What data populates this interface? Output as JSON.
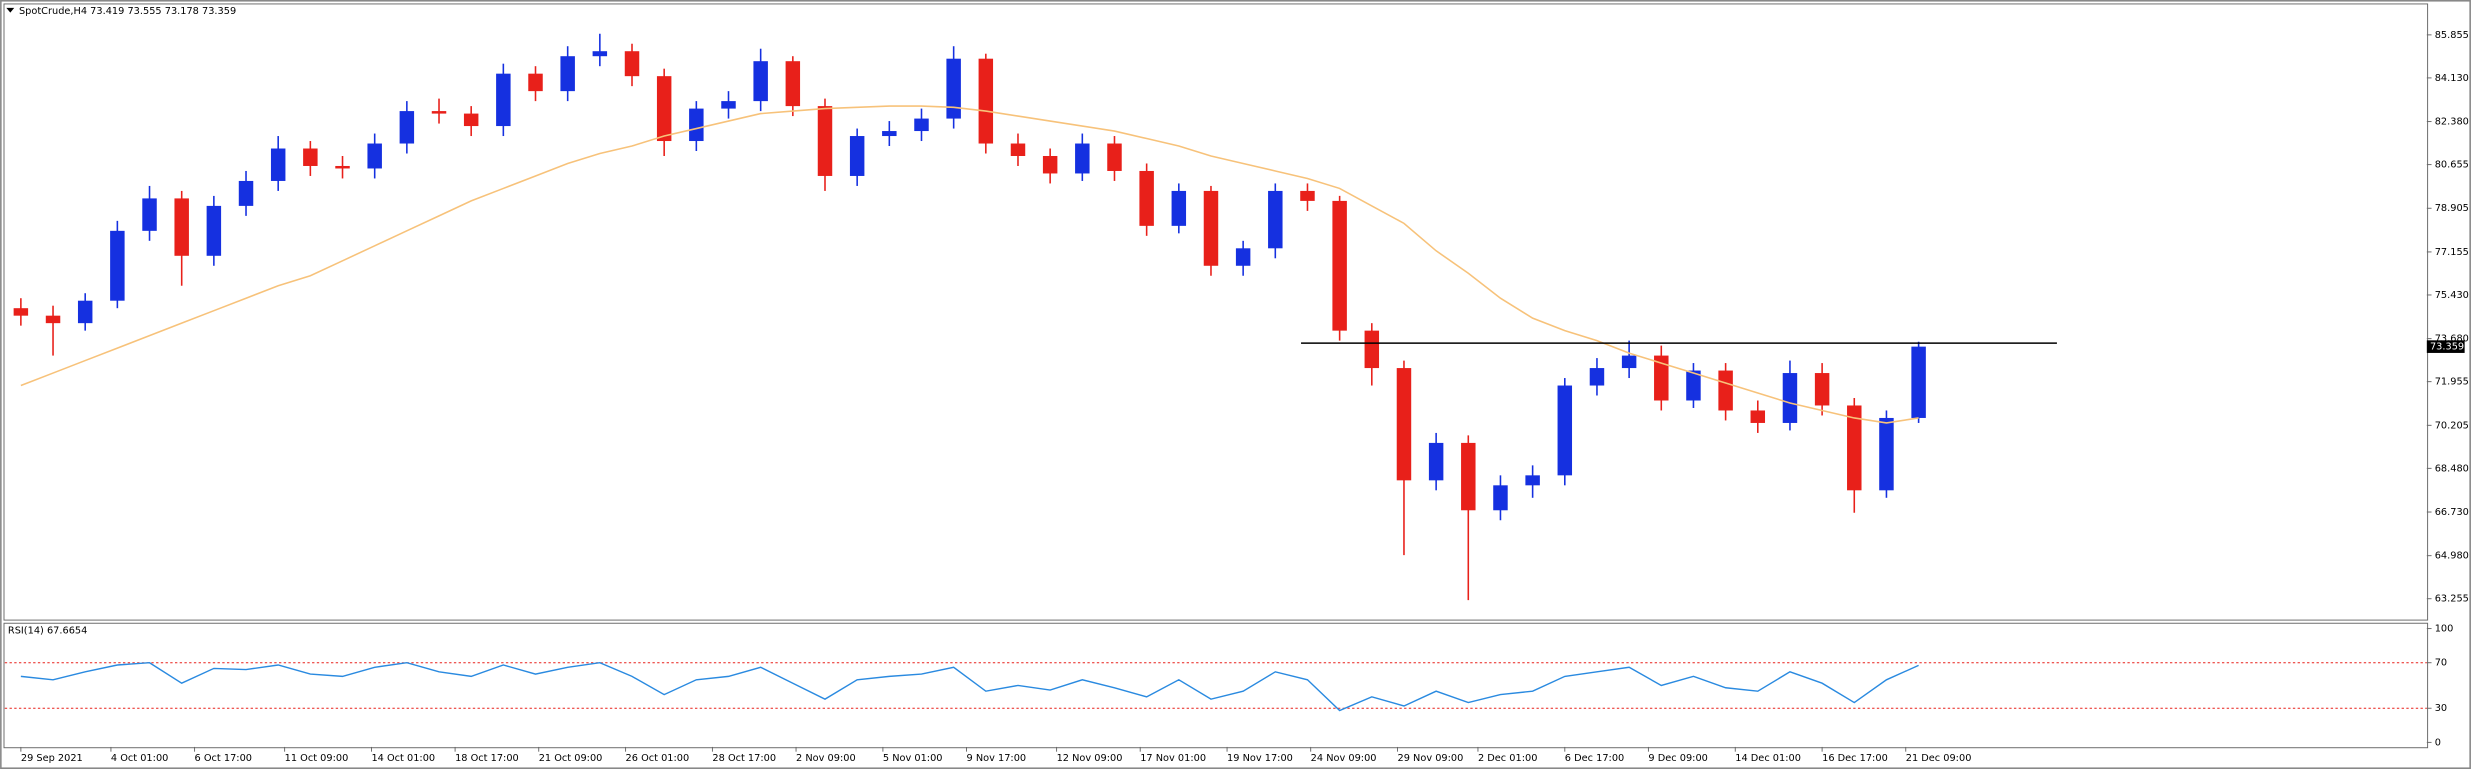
{
  "chart_data": [
    {
      "type": "candlestick",
      "title": "SpotCrude,H4",
      "header_values": [
        73.419,
        73.555,
        73.178,
        73.359
      ],
      "x": [
        0,
        1,
        2,
        3,
        4,
        5,
        6,
        7,
        8,
        9,
        10,
        11,
        12,
        13,
        14,
        15,
        16,
        17,
        18,
        19,
        20,
        21,
        22,
        23,
        24,
        25,
        26,
        27,
        28,
        29,
        30,
        31,
        32,
        33,
        34,
        35,
        36,
        37,
        38,
        39,
        40,
        41,
        42,
        43,
        44,
        45,
        46,
        47,
        48,
        49,
        50,
        51,
        52,
        53,
        54,
        55,
        56,
        57,
        58,
        59
      ],
      "open": [
        74.9,
        74.6,
        74.3,
        75.2,
        78.0,
        79.3,
        77.0,
        79.0,
        80.0,
        81.3,
        80.6,
        80.5,
        81.5,
        82.8,
        82.7,
        82.2,
        84.3,
        83.6,
        85.0,
        85.2,
        84.2,
        81.6,
        82.9,
        83.2,
        84.8,
        83.0,
        80.2,
        81.8,
        82.0,
        82.5,
        84.9,
        81.5,
        81.0,
        80.3,
        81.5,
        80.4,
        78.2,
        79.6,
        76.6,
        77.3,
        79.6,
        79.2,
        74.0,
        72.5,
        68.0,
        69.5,
        66.8,
        67.8,
        68.2,
        71.8,
        72.5,
        73.0,
        71.2,
        72.4,
        70.8,
        70.3,
        72.3,
        71.0,
        67.6,
        70.5
      ],
      "high": [
        75.3,
        75.0,
        75.5,
        78.4,
        79.8,
        79.6,
        79.4,
        80.4,
        81.8,
        81.6,
        81.0,
        81.9,
        83.2,
        83.3,
        83.0,
        84.7,
        84.6,
        85.4,
        85.9,
        85.5,
        84.5,
        83.2,
        83.6,
        85.3,
        85.0,
        83.3,
        82.1,
        82.4,
        82.9,
        85.4,
        85.1,
        81.9,
        81.3,
        81.9,
        81.8,
        80.7,
        79.9,
        79.8,
        77.6,
        79.9,
        79.9,
        79.4,
        74.3,
        72.8,
        69.9,
        69.8,
        68.2,
        68.6,
        72.1,
        72.9,
        73.6,
        73.4,
        72.7,
        72.7,
        71.2,
        72.8,
        72.7,
        71.3,
        70.8,
        73.555
      ],
      "low": [
        74.2,
        73.0,
        74.0,
        74.9,
        77.6,
        75.8,
        76.6,
        78.6,
        79.6,
        80.2,
        80.1,
        80.1,
        81.1,
        82.3,
        81.8,
        81.8,
        83.2,
        83.2,
        84.6,
        83.8,
        81.0,
        81.2,
        82.5,
        82.8,
        82.6,
        79.6,
        79.8,
        81.4,
        81.6,
        82.1,
        81.1,
        80.6,
        79.9,
        80.0,
        80.0,
        77.8,
        77.9,
        76.2,
        76.2,
        76.9,
        78.8,
        73.6,
        71.8,
        65.0,
        67.6,
        63.2,
        66.4,
        67.3,
        67.8,
        71.4,
        72.1,
        70.8,
        70.9,
        70.4,
        69.9,
        70.0,
        70.6,
        66.7,
        67.3,
        70.3
      ],
      "close": [
        74.6,
        74.3,
        75.2,
        78.0,
        79.3,
        77.0,
        79.0,
        80.0,
        81.3,
        80.6,
        80.5,
        81.5,
        82.8,
        82.7,
        82.2,
        84.3,
        83.6,
        85.0,
        85.2,
        84.2,
        81.6,
        82.9,
        83.2,
        84.8,
        83.0,
        80.2,
        81.8,
        82.0,
        82.5,
        84.9,
        81.5,
        81.0,
        80.3,
        81.5,
        80.4,
        78.2,
        79.6,
        76.6,
        77.3,
        79.6,
        79.2,
        74.0,
        72.5,
        68.0,
        69.5,
        66.8,
        67.8,
        68.2,
        71.8,
        72.5,
        73.0,
        71.2,
        72.4,
        70.8,
        70.3,
        72.3,
        71.0,
        67.6,
        70.5,
        73.359
      ],
      "up_color": "#1530e0",
      "down_color": "#e8201a",
      "ma": {
        "color": "#f7c27a",
        "values": [
          71.8,
          72.3,
          72.8,
          73.3,
          73.8,
          74.3,
          74.8,
          75.3,
          75.8,
          76.2,
          76.8,
          77.4,
          78.0,
          78.6,
          79.2,
          79.7,
          80.2,
          80.7,
          81.1,
          81.4,
          81.8,
          82.1,
          82.4,
          82.7,
          82.8,
          82.9,
          82.95,
          83.0,
          83.0,
          82.95,
          82.8,
          82.6,
          82.4,
          82.2,
          82.0,
          81.7,
          81.4,
          81.0,
          80.7,
          80.4,
          80.1,
          79.7,
          79.0,
          78.3,
          77.2,
          76.3,
          75.3,
          74.5,
          74.0,
          73.6,
          73.1,
          72.7,
          72.3,
          71.9,
          71.5,
          71.1,
          70.8,
          70.5,
          70.3,
          70.5
        ]
      },
      "hline": {
        "value": 73.5,
        "xlim": [
          39.8,
          63.3
        ],
        "color": "#000000"
      },
      "current_price": 73.359,
      "xlim": [
        -0.5,
        74.8
      ],
      "ylim": [
        62.43,
        87.0
      ],
      "yticks": [
        85.855,
        {
          "value": 84.13,
          "label": "84.130"
        },
        {
          "value": 82.38,
          "label": "82.380"
        },
        80.655,
        78.905,
        77.155,
        {
          "value": 75.43,
          "label": "75.430"
        },
        {
          "value": 73.68,
          "label": "73.680"
        },
        71.955,
        70.205,
        {
          "value": 68.48,
          "label": "68.480"
        },
        {
          "value": 66.73,
          "label": "66.730"
        },
        {
          "value": 64.98,
          "label": "64.980"
        },
        63.255
      ],
      "xticks": [
        {
          "value": 0,
          "label": "29 Sep 2021"
        },
        {
          "value": 2.8,
          "label": "4 Oct 01:00"
        },
        {
          "value": 5.4,
          "label": "6 Oct 17:00"
        },
        {
          "value": 8.2,
          "label": "11 Oct 09:00"
        },
        {
          "value": 10.9,
          "label": "14 Oct 01:00"
        },
        {
          "value": 13.5,
          "label": "18 Oct 17:00"
        },
        {
          "value": 16.1,
          "label": "21 Oct 09:00"
        },
        {
          "value": 18.8,
          "label": "26 Oct 01:00"
        },
        {
          "value": 21.5,
          "label": "28 Oct 17:00"
        },
        {
          "value": 24.1,
          "label": "2 Nov 09:00"
        },
        {
          "value": 26.8,
          "label": "5 Nov 01:00"
        },
        {
          "value": 29.4,
          "label": "9 Nov 17:00"
        },
        {
          "value": 32.2,
          "label": "12 Nov 09:00"
        },
        {
          "value": 34.8,
          "label": "17 Nov 01:00"
        },
        {
          "value": 37.5,
          "label": "19 Nov 17:00"
        },
        {
          "value": 40.1,
          "label": "24 Nov 09:00"
        },
        {
          "value": 42.8,
          "label": "29 Nov 09:00"
        },
        {
          "value": 45.3,
          "label": "2 Dec 01:00"
        },
        {
          "value": 48.0,
          "label": "6 Dec 17:00"
        },
        {
          "value": 50.6,
          "label": "9 Dec 09:00"
        },
        {
          "value": 53.3,
          "label": "14 Dec 01:00"
        },
        {
          "value": 56.0,
          "label": "16 Dec 17:00"
        },
        {
          "value": 58.6,
          "label": "21 Dec 09:00"
        }
      ]
    },
    {
      "type": "line",
      "title": "RSI(14)",
      "last_value": 67.6654,
      "color": "#2a8ae0",
      "x": [
        0,
        1,
        2,
        3,
        4,
        5,
        6,
        7,
        8,
        9,
        10,
        11,
        12,
        13,
        14,
        15,
        16,
        17,
        18,
        19,
        20,
        21,
        22,
        23,
        24,
        25,
        26,
        27,
        28,
        29,
        30,
        31,
        32,
        33,
        34,
        35,
        36,
        37,
        38,
        39,
        40,
        41,
        42,
        43,
        44,
        45,
        46,
        47,
        48,
        49,
        50,
        51,
        52,
        53,
        54,
        55,
        56,
        57,
        58,
        59
      ],
      "values": [
        58,
        55,
        62,
        68,
        70,
        52,
        65,
        64,
        68,
        60,
        58,
        66,
        70,
        62,
        58,
        68,
        60,
        66,
        70,
        58,
        42,
        55,
        58,
        66,
        52,
        38,
        55,
        58,
        60,
        66,
        45,
        50,
        46,
        55,
        48,
        40,
        55,
        38,
        45,
        62,
        55,
        28,
        40,
        32,
        45,
        35,
        42,
        45,
        58,
        62,
        66,
        50,
        58,
        48,
        45,
        62,
        52,
        35,
        55,
        67.6654
      ],
      "xlim": [
        -0.5,
        74.8
      ],
      "ylim": [
        -4,
        104
      ],
      "yticks": [
        0,
        30,
        70,
        100
      ],
      "levels": [
        30,
        70
      ],
      "level_color": "#e8201a"
    }
  ]
}
